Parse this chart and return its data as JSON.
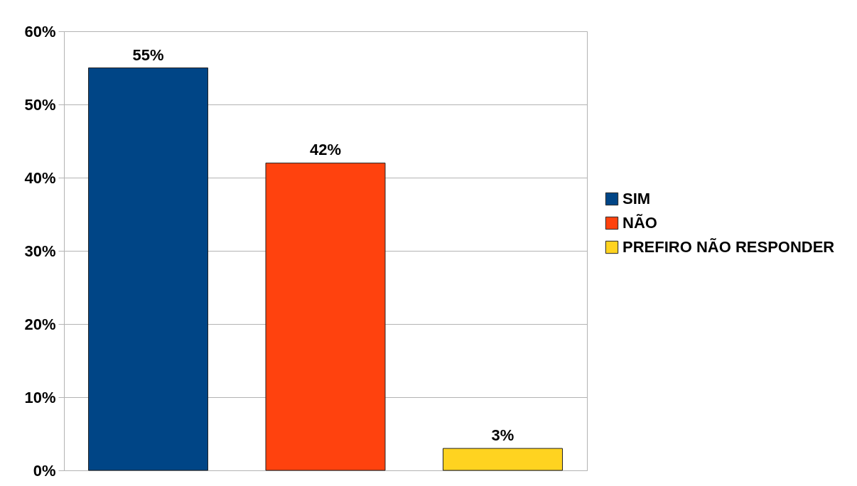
{
  "chart_data": {
    "type": "bar",
    "categories": [
      null,
      null,
      null
    ],
    "series": [
      {
        "name": "SIM",
        "color": "#004586",
        "values": [
          55,
          null,
          null
        ],
        "value_labels": [
          "55%",
          null,
          null
        ]
      },
      {
        "name": "NÃO",
        "color": "#ff420e",
        "values": [
          null,
          42,
          null
        ],
        "value_labels": [
          null,
          "42%",
          null
        ]
      },
      {
        "name": "PREFIRO NÃO RESPONDER",
        "color": "#ffd320",
        "values": [
          null,
          null,
          3
        ],
        "value_labels": [
          null,
          null,
          "3%"
        ]
      }
    ],
    "ylim": [
      0,
      60
    ],
    "yticks": [
      {
        "value": 0,
        "label": "0%"
      },
      {
        "value": 10,
        "label": "10%"
      },
      {
        "value": 20,
        "label": "20%"
      },
      {
        "value": 30,
        "label": "30%"
      },
      {
        "value": 40,
        "label": "40%"
      },
      {
        "value": 50,
        "label": "50%"
      },
      {
        "value": 60,
        "label": "60%"
      }
    ],
    "grid": "y",
    "legend": "right",
    "tick_labels": "y"
  }
}
